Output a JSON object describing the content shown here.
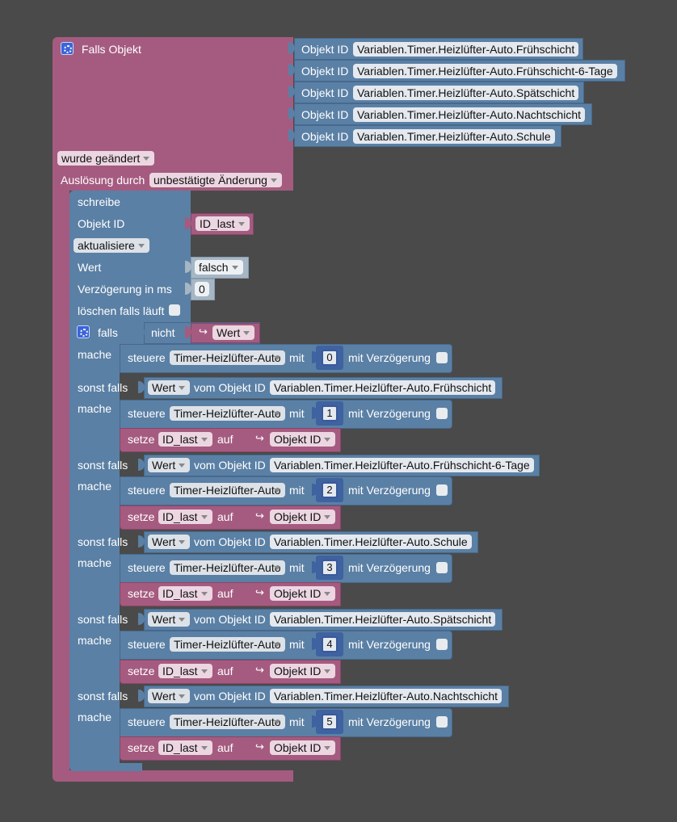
{
  "trigger": {
    "title": "Falls Objekt",
    "object_label": "Objekt ID",
    "objects": [
      "Variablen.Timer.Heizlüfter-Auto.Frühschicht",
      "Variablen.Timer.Heizlüfter-Auto.Frühschicht-6-Tage",
      "Variablen.Timer.Heizlüfter-Auto.Spätschicht",
      "Variablen.Timer.Heizlüfter-Auto.Nachtschicht",
      "Variablen.Timer.Heizlüfter-Auto.Schule"
    ],
    "changed": "wurde geändert",
    "triggered_by_label": "Auslösung durch",
    "triggered_by_value": "unbestätigte Änderung"
  },
  "write": {
    "title": "schreibe",
    "object_label": "Objekt ID",
    "object_value": "ID_last",
    "mode": "aktualisiere",
    "value_label": "Wert",
    "value": "falsch",
    "delay_label": "Verzögerung in ms",
    "delay": "0",
    "clear_label": "löschen falls läuft"
  },
  "if_block": {
    "if_label": "falls",
    "not_label": "nicht",
    "value_dd": "Wert",
    "do_label": "mache",
    "elseif_label": "sonst falls",
    "from_object_label": "vom Objekt ID",
    "control_label": "steuere",
    "control_target": "Timer-Heizlüfter-Auto",
    "with_label": "mit",
    "with_delay_label": "mit Verzögerung",
    "set_label": "setze",
    "set_var": "ID_last",
    "to_label": "auf",
    "object_id_dd": "Objekt ID",
    "first_value": "0",
    "branches": [
      {
        "object": "Variablen.Timer.Heizlüfter-Auto.Frühschicht",
        "value": "1"
      },
      {
        "object": "Variablen.Timer.Heizlüfter-Auto.Frühschicht-6-Tage",
        "value": "2"
      },
      {
        "object": "Variablen.Timer.Heizlüfter-Auto.Schule",
        "value": "3"
      },
      {
        "object": "Variablen.Timer.Heizlüfter-Auto.Spätschicht",
        "value": "4"
      },
      {
        "object": "Variablen.Timer.Heizlüfter-Auto.Nachtschicht",
        "value": "5"
      }
    ]
  }
}
